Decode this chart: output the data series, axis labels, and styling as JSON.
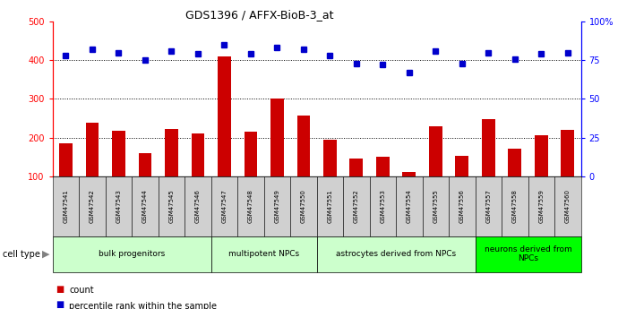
{
  "title": "GDS1396 / AFFX-BioB-3_at",
  "samples": [
    "GSM47541",
    "GSM47542",
    "GSM47543",
    "GSM47544",
    "GSM47545",
    "GSM47546",
    "GSM47547",
    "GSM47548",
    "GSM47549",
    "GSM47550",
    "GSM47551",
    "GSM47552",
    "GSM47553",
    "GSM47554",
    "GSM47555",
    "GSM47556",
    "GSM47557",
    "GSM47558",
    "GSM47559",
    "GSM47560"
  ],
  "counts": [
    185,
    238,
    218,
    160,
    223,
    210,
    410,
    215,
    300,
    258,
    195,
    145,
    150,
    110,
    228,
    153,
    248,
    170,
    205,
    220
  ],
  "percentile_ranks": [
    78,
    82,
    80,
    75,
    81,
    79,
    85,
    79,
    83,
    82,
    78,
    73,
    72,
    67,
    81,
    73,
    80,
    76,
    79,
    80
  ],
  "cell_type_groups": [
    {
      "label": "bulk progenitors",
      "start": 0,
      "end": 5,
      "color": "#ccffcc"
    },
    {
      "label": "multipotent NPCs",
      "start": 6,
      "end": 9,
      "color": "#ccffcc"
    },
    {
      "label": "astrocytes derived from NPCs",
      "start": 10,
      "end": 15,
      "color": "#ccffcc"
    },
    {
      "label": "neurons derived from\nNPCs",
      "start": 16,
      "end": 19,
      "color": "#00ff00"
    }
  ],
  "bar_color": "#cc0000",
  "dot_color": "#0000cc",
  "ylim_left": [
    100,
    500
  ],
  "ylim_right": [
    0,
    100
  ],
  "yticks_left": [
    100,
    200,
    300,
    400,
    500
  ],
  "yticks_right": [
    0,
    25,
    50,
    75,
    100
  ],
  "ytick_labels_right": [
    "0",
    "25",
    "50",
    "75",
    "100%"
  ],
  "grid_values": [
    200,
    300,
    400
  ],
  "background_color": "#ffffff",
  "tick_bg_color": "#d0d0d0",
  "legend_count_color": "#cc0000",
  "legend_pct_color": "#0000cc"
}
